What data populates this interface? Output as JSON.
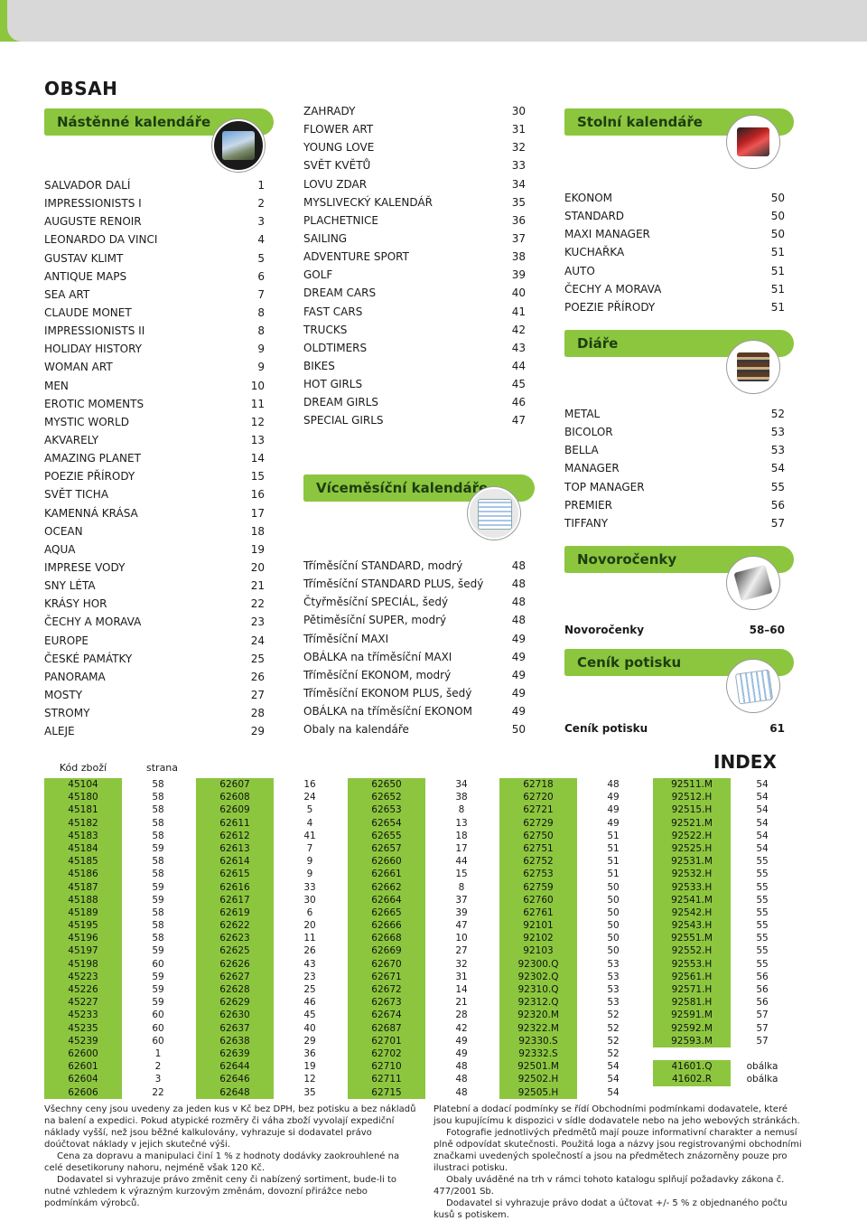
{
  "title": "OBSAH",
  "wall": {
    "heading": "Nástěnné kalendáře",
    "items": [
      {
        "name": "SALVADOR DALÍ",
        "page": "1"
      },
      {
        "name": "IMPRESSIONISTS I",
        "page": "2"
      },
      {
        "name": "AUGUSTE RENOIR",
        "page": "3"
      },
      {
        "name": "LEONARDO DA VINCI",
        "page": "4"
      },
      {
        "name": "GUSTAV KLIMT",
        "page": "5"
      },
      {
        "name": "ANTIQUE MAPS",
        "page": "6"
      },
      {
        "name": "SEA ART",
        "page": "7"
      },
      {
        "name": "CLAUDE MONET",
        "page": "8"
      },
      {
        "name": "IMPRESSIONISTS II",
        "page": "8"
      },
      {
        "name": "HOLIDAY HISTORY",
        "page": "9"
      },
      {
        "name": "WOMAN ART",
        "page": "9"
      },
      {
        "name": "MEN",
        "page": "10"
      },
      {
        "name": "EROTIC MOMENTS",
        "page": "11"
      },
      {
        "name": "MYSTIC WORLD",
        "page": "12"
      },
      {
        "name": "AKVARELY",
        "page": "13"
      },
      {
        "name": "AMAZING PLANET",
        "page": "14"
      },
      {
        "name": "POEZIE PŘÍRODY",
        "page": "15"
      },
      {
        "name": "SVĚT TICHA",
        "page": "16"
      },
      {
        "name": "KAMENNÁ KRÁSA",
        "page": "17"
      },
      {
        "name": "OCEAN",
        "page": "18"
      },
      {
        "name": "AQUA",
        "page": "19"
      },
      {
        "name": "IMPRESE VODY",
        "page": "20"
      },
      {
        "name": "SNY LÉTA",
        "page": "21"
      },
      {
        "name": "KRÁSY HOR",
        "page": "22"
      },
      {
        "name": "ČECHY A MORAVA",
        "page": "23"
      },
      {
        "name": "EUROPE",
        "page": "24"
      },
      {
        "name": "ČESKÉ PAMÁTKY",
        "page": "25"
      },
      {
        "name": "PANORAMA",
        "page": "26"
      },
      {
        "name": "MOSTY",
        "page": "27"
      },
      {
        "name": "STROMY",
        "page": "28"
      },
      {
        "name": "ALEJE",
        "page": "29"
      }
    ]
  },
  "wall2": {
    "items": [
      {
        "name": "ZAHRADY",
        "page": "30"
      },
      {
        "name": "FLOWER ART",
        "page": "31"
      },
      {
        "name": "YOUNG LOVE",
        "page": "32"
      },
      {
        "name": "SVĚT KVĚTŮ",
        "page": "33"
      },
      {
        "name": "LOVU ZDAR",
        "page": "34"
      },
      {
        "name": "MYSLIVECKÝ KALENDÁŘ",
        "page": "35"
      },
      {
        "name": "PLACHETNICE",
        "page": "36"
      },
      {
        "name": "SAILING",
        "page": "37"
      },
      {
        "name": "ADVENTURE SPORT",
        "page": "38"
      },
      {
        "name": "GOLF",
        "page": "39"
      },
      {
        "name": "DREAM CARS",
        "page": "40"
      },
      {
        "name": "FAST CARS",
        "page": "41"
      },
      {
        "name": "TRUCKS",
        "page": "42"
      },
      {
        "name": "OLDTIMERS",
        "page": "43"
      },
      {
        "name": "BIKES",
        "page": "44"
      },
      {
        "name": "HOT GIRLS",
        "page": "45"
      },
      {
        "name": "DREAM GIRLS",
        "page": "46"
      },
      {
        "name": "SPECIAL GIRLS",
        "page": "47"
      }
    ]
  },
  "multi": {
    "heading": "Víceměsíční kalendáře",
    "items": [
      {
        "name": "Tříměsíční STANDARD, modrý",
        "page": "48"
      },
      {
        "name": "Tříměsíční STANDARD PLUS, šedý",
        "page": "48"
      },
      {
        "name": "Čtyřměsíční SPECIÁL, šedý",
        "page": "48"
      },
      {
        "name": "Pětiměsíční SUPER, modrý",
        "page": "48"
      },
      {
        "name": "Tříměsíční MAXI",
        "page": "49"
      },
      {
        "name": "OBÁLKA na tříměsíční MAXI",
        "page": "49"
      },
      {
        "name": "Tříměsíční EKONOM, modrý",
        "page": "49"
      },
      {
        "name": "Tříměsíční EKONOM PLUS, šedý",
        "page": "49"
      },
      {
        "name": "OBÁLKA na tříměsíční EKONOM",
        "page": "49"
      },
      {
        "name": "Obaly na kalendáře",
        "page": "50"
      }
    ]
  },
  "desk": {
    "heading": "Stolní kalendáře",
    "items": [
      {
        "name": "EKONOM",
        "page": "50"
      },
      {
        "name": "STANDARD",
        "page": "50"
      },
      {
        "name": "MAXI MANAGER",
        "page": "50"
      },
      {
        "name": "KUCHAŘKA",
        "page": "51"
      },
      {
        "name": "AUTO",
        "page": "51"
      },
      {
        "name": "ČECHY A MORAVA",
        "page": "51"
      },
      {
        "name": "POEZIE PŘÍRODY",
        "page": "51"
      }
    ]
  },
  "diaries": {
    "heading": "Diáře",
    "items": [
      {
        "name": "METAL",
        "page": "52"
      },
      {
        "name": "BICOLOR",
        "page": "53"
      },
      {
        "name": "BELLA",
        "page": "53"
      },
      {
        "name": "MANAGER",
        "page": "54"
      },
      {
        "name": "TOP MANAGER",
        "page": "55"
      },
      {
        "name": "PREMIER",
        "page": "56"
      },
      {
        "name": "TIFFANY",
        "page": "57"
      }
    ]
  },
  "newyear": {
    "heading": "Novoročenky",
    "item": {
      "name": "Novoročenky",
      "page": "58–60"
    }
  },
  "pricelist": {
    "heading": "Ceník potisku",
    "item": {
      "name": "Ceník potisku",
      "page": "61"
    }
  },
  "index": {
    "title": "INDEX",
    "code_header": "Kód zboží",
    "page_header": "strana",
    "columns": [
      {
        "codes": [
          "45104",
          "45180",
          "45181",
          "45182",
          "45183",
          "45184",
          "45185",
          "45186",
          "45187",
          "45188",
          "45189",
          "45195",
          "45196",
          "45197",
          "45198",
          "45223",
          "45226",
          "45227",
          "45233",
          "45235",
          "45239",
          "62600",
          "62601",
          "62604",
          "62606"
        ],
        "pages": [
          "58",
          "58",
          "58",
          "58",
          "58",
          "59",
          "58",
          "58",
          "59",
          "59",
          "58",
          "58",
          "58",
          "59",
          "60",
          "59",
          "59",
          "59",
          "60",
          "60",
          "60",
          "1",
          "2",
          "3",
          "22"
        ]
      },
      {
        "codes": [
          "62607",
          "62608",
          "62609",
          "62611",
          "62612",
          "62613",
          "62614",
          "62615",
          "62616",
          "62617",
          "62619",
          "62622",
          "62623",
          "62625",
          "62626",
          "62627",
          "62628",
          "62629",
          "62630",
          "62637",
          "62638",
          "62639",
          "62644",
          "62646",
          "62648"
        ],
        "pages": [
          "16",
          "24",
          "5",
          "4",
          "41",
          "7",
          "9",
          "9",
          "33",
          "30",
          "6",
          "20",
          "11",
          "26",
          "43",
          "23",
          "25",
          "46",
          "45",
          "40",
          "29",
          "36",
          "19",
          "12",
          "35"
        ]
      },
      {
        "codes": [
          "62650",
          "62652",
          "62653",
          "62654",
          "62655",
          "62657",
          "62660",
          "62661",
          "62662",
          "62664",
          "62665",
          "62666",
          "62668",
          "62669",
          "62670",
          "62671",
          "62672",
          "62673",
          "62674",
          "62687",
          "62701",
          "62702",
          "62710",
          "62711",
          "62715"
        ],
        "pages": [
          "34",
          "38",
          "8",
          "13",
          "18",
          "17",
          "44",
          "15",
          "8",
          "37",
          "39",
          "47",
          "10",
          "27",
          "32",
          "31",
          "14",
          "21",
          "28",
          "42",
          "49",
          "49",
          "48",
          "48",
          "48"
        ]
      },
      {
        "codes": [
          "62718",
          "62720",
          "62721",
          "62729",
          "62750",
          "62751",
          "62752",
          "62753",
          "62759",
          "62760",
          "62761",
          "92101",
          "92102",
          "92103",
          "92300.Q",
          "92302.Q",
          "92310.Q",
          "92312.Q",
          "92320.M",
          "92322.M",
          "92330.S",
          "92332.S",
          "92501.M",
          "92502.H",
          "92505.H"
        ],
        "pages": [
          "48",
          "49",
          "49",
          "49",
          "51",
          "51",
          "51",
          "51",
          "50",
          "50",
          "50",
          "50",
          "50",
          "50",
          "53",
          "53",
          "53",
          "53",
          "52",
          "52",
          "52",
          "52",
          "54",
          "54",
          "54"
        ]
      },
      {
        "codes": [
          "92511.M",
          "92512.H",
          "92515.H",
          "92521.M",
          "92522.H",
          "92525.H",
          "92531.M",
          "92532.H",
          "92533.H",
          "92541.M",
          "92542.H",
          "92543.H",
          "92551.M",
          "92552.H",
          "92553.H",
          "92561.H",
          "92571.H",
          "92581.H",
          "92591.M",
          "92592.M",
          "92593.M",
          "",
          "41601.Q",
          "41602.R"
        ],
        "pages": [
          "54",
          "54",
          "54",
          "54",
          "54",
          "54",
          "55",
          "55",
          "55",
          "55",
          "55",
          "55",
          "55",
          "55",
          "55",
          "56",
          "56",
          "56",
          "57",
          "57",
          "57",
          "",
          "obálka",
          "obálka"
        ]
      }
    ]
  },
  "footer_left": [
    "Všechny ceny jsou uvedeny za jeden kus v Kč bez DPH, bez potisku a bez nákladů na balení a expedici. Pokud atypické rozměry či váha zboží vyvolají expediční náklady vyšší, než jsou běžné kalkulovány, vyhrazuje si dodavatel právo doúčtovat náklady v jejich skutečné výši.",
    "Cena za dopravu a manipulaci činí 1 % z hodnoty dodávky zaokrouhlené na celé desetikoruny nahoru, nejméně však 120 Kč.",
    "Dodavatel si vyhrazuje právo změnit ceny či nabízený sortiment, bude-li to nutné vzhledem k výrazným kurzovým změnám, dovozní přirážce nebo podmínkám výrobců."
  ],
  "footer_right": [
    "Platební a dodací podmínky se řídí Obchodními podmínkami dodavatele, které jsou kupujícímu k dispozici v sídle dodavatele nebo na jeho webových stránkách.",
    "Fotografie jednotlivých předmětů mají pouze informativní charakter a nemusí plně odpovídat skutečnosti. Použitá loga a názvy jsou registrovanými obchodními značkami uvedených společností a jsou na předmětech znázorněny pouze pro ilustraci potisku.",
    "Obaly uváděné na trh v rámci tohoto katalogu splňují požadavky zákona č. 477/2001 Sb.",
    "Dodavatel si vyhrazuje právo dodat a účtovat +/- 5 % z objednaného počtu kusů s potiskem."
  ],
  "colors": {
    "accent": "#8cc63f"
  }
}
